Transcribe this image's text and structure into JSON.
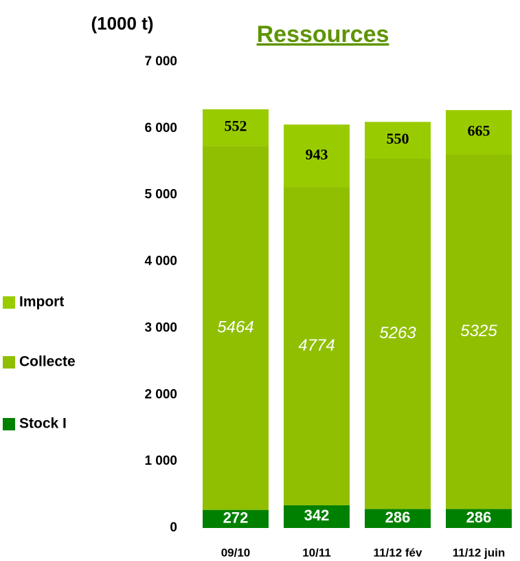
{
  "chart_data": {
    "type": "stacked_bar",
    "title": "Ressources",
    "y_label": "(1000 t)",
    "categories": [
      "09/10",
      "10/11",
      "11/12 fév",
      "11/12 juin"
    ],
    "series": [
      {
        "name": "Stock I",
        "color": "#008000",
        "values": [
          272,
          342,
          286,
          286
        ]
      },
      {
        "name": "Collecte",
        "color": "#8fbf00",
        "values": [
          5464,
          4774,
          5263,
          5325
        ]
      },
      {
        "name": "Import",
        "color": "#99cc00",
        "values": [
          552,
          943,
          550,
          665
        ]
      }
    ],
    "ylim": [
      0,
      7000
    ],
    "yticks": [
      {
        "value": 0,
        "label": "0"
      },
      {
        "value": 1000,
        "label": "1 000"
      },
      {
        "value": 2000,
        "label": "2 000"
      },
      {
        "value": 3000,
        "label": "3 000"
      },
      {
        "value": 4000,
        "label": "4 000"
      },
      {
        "value": 5000,
        "label": "5 000"
      },
      {
        "value": 6000,
        "label": "6 000"
      },
      {
        "value": 7000,
        "label": "7 000"
      }
    ]
  }
}
